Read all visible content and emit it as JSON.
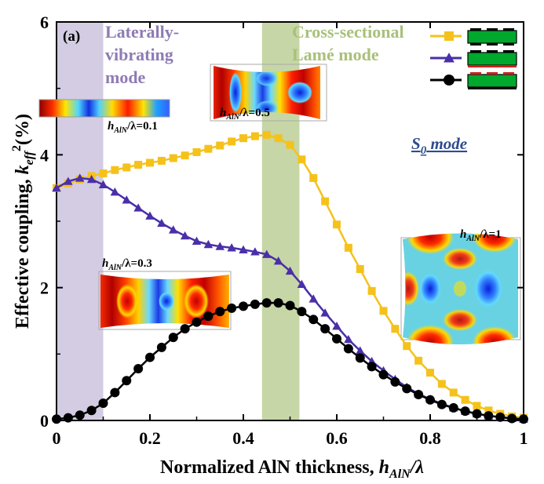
{
  "panel_label": "(a)",
  "chart_data": {
    "type": "line",
    "xlabel_main": "Normalized AlN thickness, ",
    "xlabel_var": "h",
    "xlabel_sub": "AlN",
    "xlabel_tail": "/λ",
    "ylabel_main": "Effective coupling, ",
    "ylabel_var": "k",
    "ylabel_sub": "eff",
    "ylabel_sup": "2",
    "ylabel_unit": "(%)",
    "xlim": [
      0,
      1
    ],
    "ylim": [
      0,
      6
    ],
    "xticks": [
      "0",
      "0.2",
      "0.4",
      "0.6",
      "0.8",
      "1"
    ],
    "yticks": [
      "0",
      "2",
      "4",
      "6"
    ],
    "grid": false,
    "legend_placement": "top-right",
    "series": [
      {
        "color": "#f5c21b",
        "marker": "square",
        "x": [
          0,
          0.025,
          0.05,
          0.075,
          0.1,
          0.125,
          0.15,
          0.175,
          0.2,
          0.225,
          0.25,
          0.275,
          0.3,
          0.325,
          0.35,
          0.375,
          0.4,
          0.425,
          0.45,
          0.475,
          0.5,
          0.525,
          0.55,
          0.575,
          0.6,
          0.625,
          0.65,
          0.675,
          0.7,
          0.725,
          0.75,
          0.775,
          0.8,
          0.825,
          0.85,
          0.875,
          0.9,
          0.925,
          0.95,
          0.975,
          1.0
        ],
        "y": [
          3.5,
          3.57,
          3.63,
          3.68,
          3.72,
          3.77,
          3.81,
          3.85,
          3.88,
          3.91,
          3.95,
          3.99,
          4.04,
          4.09,
          4.14,
          4.2,
          4.25,
          4.28,
          4.3,
          4.25,
          4.15,
          3.93,
          3.65,
          3.3,
          2.95,
          2.6,
          2.28,
          1.95,
          1.65,
          1.38,
          1.12,
          0.9,
          0.72,
          0.55,
          0.42,
          0.31,
          0.22,
          0.15,
          0.1,
          0.06,
          0.04
        ]
      },
      {
        "color": "#4a2fa8",
        "marker": "triangle",
        "x": [
          0,
          0.025,
          0.05,
          0.075,
          0.1,
          0.125,
          0.15,
          0.175,
          0.2,
          0.225,
          0.25,
          0.275,
          0.3,
          0.325,
          0.35,
          0.375,
          0.4,
          0.425,
          0.45,
          0.475,
          0.5,
          0.525,
          0.55,
          0.575,
          0.6,
          0.625,
          0.65,
          0.675,
          0.7,
          0.725,
          0.75,
          0.775,
          0.8,
          0.825,
          0.85,
          0.875,
          0.9,
          0.925,
          0.95,
          0.975,
          1.0
        ],
        "y": [
          3.5,
          3.6,
          3.65,
          3.63,
          3.55,
          3.44,
          3.32,
          3.2,
          3.08,
          2.97,
          2.87,
          2.78,
          2.7,
          2.65,
          2.62,
          2.6,
          2.57,
          2.54,
          2.5,
          2.4,
          2.25,
          2.05,
          1.83,
          1.62,
          1.42,
          1.22,
          1.05,
          0.89,
          0.75,
          0.62,
          0.5,
          0.4,
          0.32,
          0.25,
          0.19,
          0.14,
          0.1,
          0.07,
          0.05,
          0.03,
          0.02
        ]
      },
      {
        "color": "#000000",
        "marker": "circle",
        "x": [
          0,
          0.025,
          0.05,
          0.075,
          0.1,
          0.125,
          0.15,
          0.175,
          0.2,
          0.225,
          0.25,
          0.275,
          0.3,
          0.325,
          0.35,
          0.375,
          0.4,
          0.425,
          0.45,
          0.475,
          0.5,
          0.525,
          0.55,
          0.575,
          0.6,
          0.625,
          0.65,
          0.675,
          0.7,
          0.725,
          0.75,
          0.775,
          0.8,
          0.825,
          0.85,
          0.875,
          0.9,
          0.925,
          0.95,
          0.975,
          1.0
        ],
        "y": [
          0.02,
          0.04,
          0.08,
          0.15,
          0.26,
          0.42,
          0.6,
          0.78,
          0.95,
          1.1,
          1.25,
          1.38,
          1.48,
          1.57,
          1.64,
          1.69,
          1.72,
          1.75,
          1.77,
          1.77,
          1.73,
          1.64,
          1.52,
          1.38,
          1.23,
          1.08,
          0.94,
          0.81,
          0.69,
          0.58,
          0.48,
          0.39,
          0.31,
          0.24,
          0.19,
          0.14,
          0.1,
          0.07,
          0.05,
          0.03,
          0.02
        ]
      }
    ],
    "bands": [
      {
        "x_range": [
          0,
          0.1
        ],
        "color": "#cdc3de",
        "label_lines": [
          "Laterally-",
          "vibrating",
          "mode"
        ],
        "label_color": "#8e7bb5"
      },
      {
        "x_range": [
          0.44,
          0.52
        ],
        "color": "#bccf97",
        "label_lines": [
          "Cross-sectional",
          "Lamé mode"
        ],
        "label_color": "#a9c07a"
      }
    ],
    "annotations": {
      "s0_mode_main": "S",
      "s0_mode_sub": "0",
      "s0_mode_tail": " mode",
      "s0_color": "#2e4b8f",
      "inset_labels": [
        {
          "var": "h",
          "sub": "AlN",
          "tail": "/λ=0.1"
        },
        {
          "var": "h",
          "sub": "AlN",
          "tail": "/λ=0.5"
        },
        {
          "var": "h",
          "sub": "AlN",
          "tail": "/λ=0.3"
        },
        {
          "var": "h",
          "sub": "AlN",
          "tail": "/λ=1"
        }
      ]
    }
  }
}
